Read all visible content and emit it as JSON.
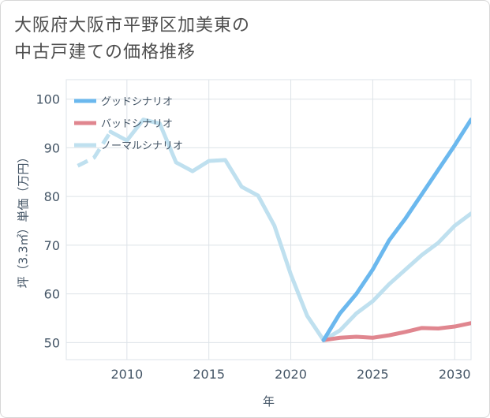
{
  "title_line1": "大阪府大阪市平野区加美東の",
  "title_line2": "中古戸建ての価格推移",
  "chart_data": {
    "type": "line",
    "xlabel": "年",
    "ylabel": "坪（3.3㎡）単価（万円）",
    "xlim": [
      2006.3,
      2031
    ],
    "ylim": [
      46.5,
      104
    ],
    "xticks": [
      2010,
      2015,
      2020,
      2025,
      2030
    ],
    "yticks": [
      50,
      60,
      70,
      80,
      90,
      100
    ],
    "grid": true,
    "legend_position": "top-left",
    "series": [
      {
        "name": "グッドシナリオ",
        "color": "#6bb8ee",
        "dashed": false,
        "x": [
          2022,
          2023,
          2024,
          2025,
          2026,
          2027,
          2028,
          2029,
          2030,
          2031
        ],
        "y": [
          50.5,
          56,
          60,
          65,
          71,
          75.5,
          80.5,
          85.5,
          90.5,
          95.8
        ]
      },
      {
        "name": "バッドシナリオ",
        "color": "#e0868f",
        "dashed": false,
        "x": [
          2022,
          2023,
          2024,
          2025,
          2026,
          2027,
          2028,
          2029,
          2030,
          2031
        ],
        "y": [
          50.5,
          51,
          51.2,
          51,
          51.5,
          52.2,
          53,
          52.9,
          53.3,
          54
        ]
      },
      {
        "name": "ノーマルシナリオ",
        "color": "#bfe0ef",
        "dashed": false,
        "dashed_until": 2009,
        "x": [
          2007,
          2008,
          2009,
          2010,
          2011,
          2012,
          2013,
          2014,
          2015,
          2016,
          2017,
          2018,
          2019,
          2020,
          2021,
          2022,
          2023,
          2024,
          2025,
          2026,
          2027,
          2028,
          2029,
          2030,
          2031
        ],
        "y": [
          86.3,
          88,
          93.3,
          91.5,
          95.8,
          95,
          87,
          85.2,
          87.3,
          87.5,
          82,
          80.2,
          74,
          64,
          55.5,
          50.5,
          52.5,
          56,
          58.5,
          62,
          65,
          68,
          70.5,
          74,
          76.5
        ]
      }
    ]
  }
}
